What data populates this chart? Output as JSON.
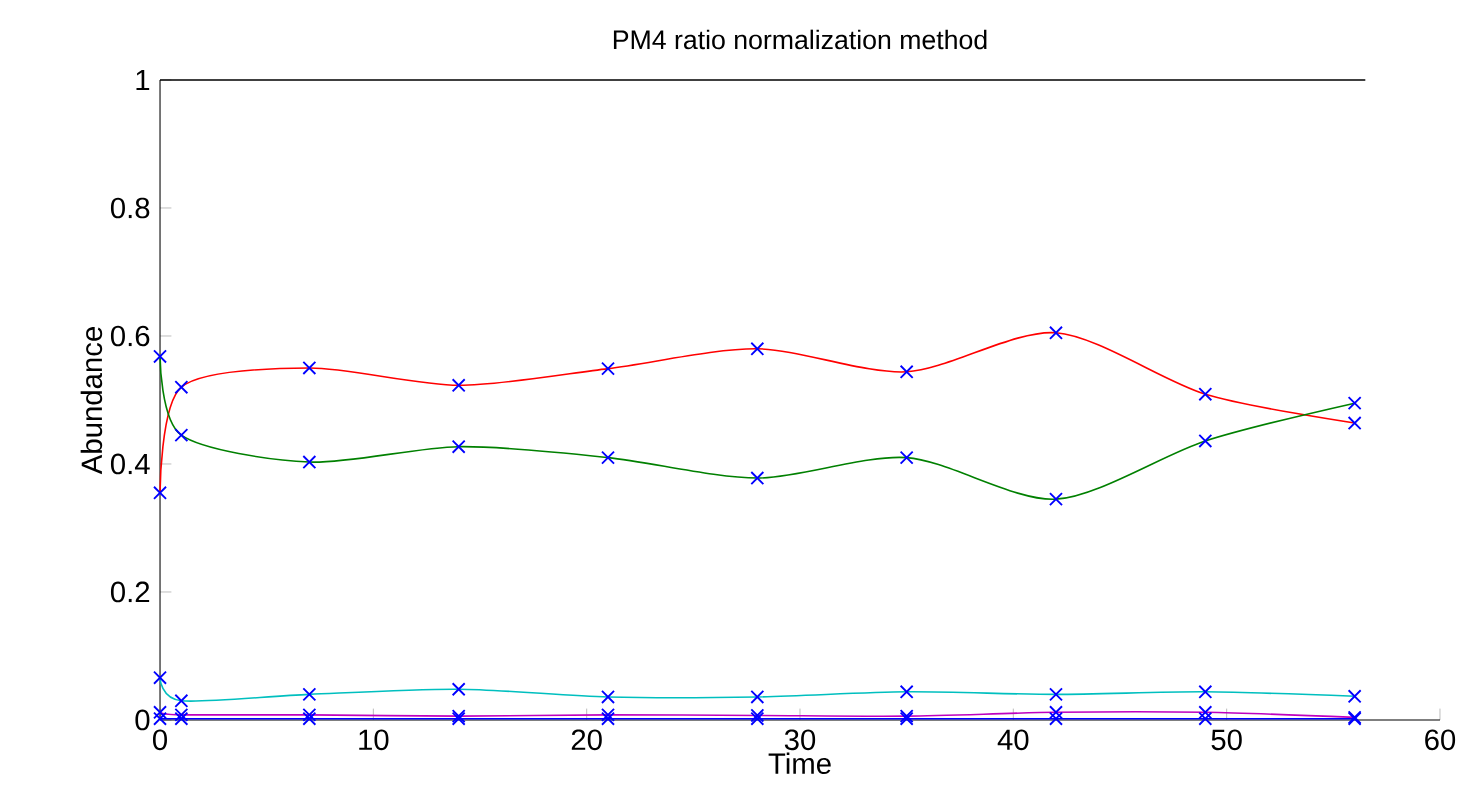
{
  "chart_data": {
    "type": "line",
    "title": "PM4 ratio normalization method",
    "xlabel": "Time",
    "ylabel": "Abundance",
    "x": [
      0,
      1,
      7,
      14,
      21,
      28,
      35,
      42,
      49,
      56
    ],
    "xlim": [
      0,
      60
    ],
    "xticks": [
      0,
      10,
      20,
      30,
      40,
      50,
      60
    ],
    "ylim": [
      0,
      1
    ],
    "yticks": [
      0,
      0.2,
      0.4,
      0.6,
      0.8,
      1
    ],
    "grid": false,
    "marker": "cross",
    "line_style": "solid",
    "series": [
      {
        "color": "#ff0000",
        "colors": [
          "#0000ff",
          "#0000ff",
          "#0000ff",
          "#0000ff",
          "#0000ff",
          "#0000ff",
          "#0000ff",
          "#0000ff",
          "#0000ff",
          "#0000ff"
        ],
        "values": [
          0.355,
          0.52,
          0.55,
          0.523,
          0.549,
          0.58,
          0.544,
          0.605,
          0.509,
          0.464
        ]
      },
      {
        "color": "#008000",
        "colors": [
          "#0000ff",
          "#0000ff",
          "#0000ff",
          "#0000ff",
          "#0000ff",
          "#0000ff",
          "#0000ff",
          "#0000ff",
          "#0000ff",
          "#0000ff"
        ],
        "values": [
          0.568,
          0.445,
          0.403,
          0.427,
          0.41,
          0.378,
          0.41,
          0.345,
          0.436,
          0.495
        ]
      },
      {
        "color": "#00bfbf",
        "colors": [
          "#0000ff",
          "#0000ff",
          "#0000ff",
          "#0000ff",
          "#0000ff",
          "#0000ff",
          "#0000ff",
          "#0000ff",
          "#0000ff",
          "#0000ff"
        ],
        "values": [
          0.066,
          0.03,
          0.04,
          0.048,
          0.036,
          0.036,
          0.044,
          0.04,
          0.044,
          0.037
        ]
      },
      {
        "color": "#bf00bf",
        "colors": [
          "#0000ff",
          "#0000ff",
          "#0000ff",
          "#0000ff",
          "#0000ff",
          "#0000ff",
          "#0000ff",
          "#0000ff",
          "#0000ff",
          "#0000ff"
        ],
        "values": [
          0.012,
          0.008,
          0.008,
          0.006,
          0.008,
          0.007,
          0.006,
          0.012,
          0.012,
          0.004
        ]
      },
      {
        "color": "#0000ff",
        "colors": [
          "#0000ff",
          "#0000ff",
          "#0000ff",
          "#0000ff",
          "#0000ff",
          "#0000ff",
          "#0000ff",
          "#0000ff",
          "#0000ff",
          "#0000ff"
        ],
        "values": [
          0.002,
          0.002,
          0.002,
          0.002,
          0.002,
          0.002,
          0.002,
          0.002,
          0.002,
          0.002
        ]
      }
    ]
  }
}
